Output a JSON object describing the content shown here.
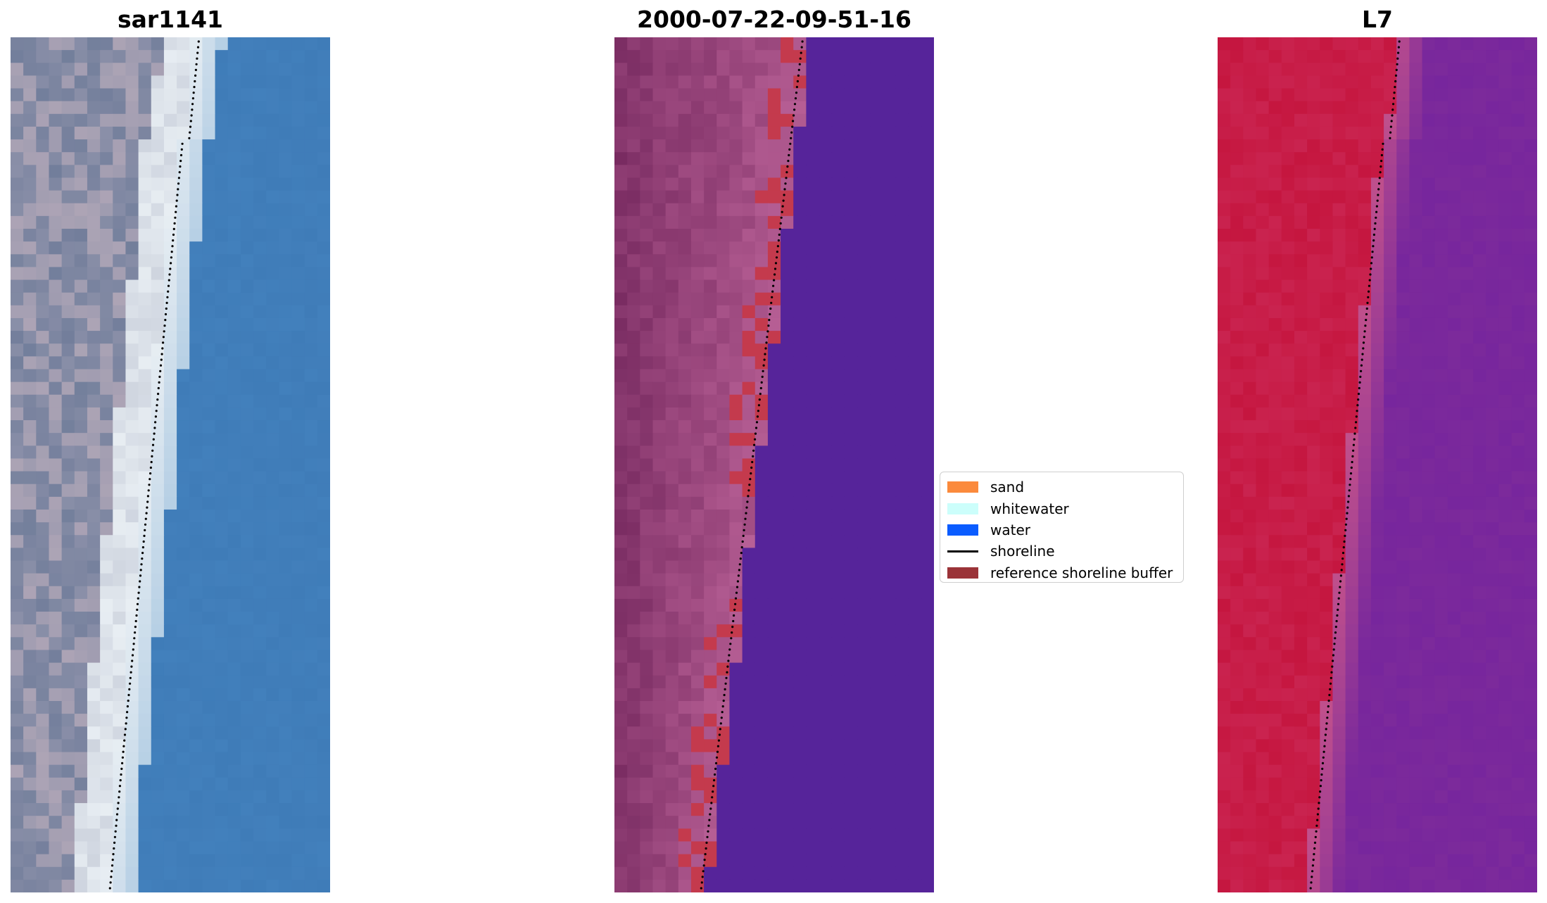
{
  "panels": [
    {
      "title": "sar1141",
      "kind": "rgb"
    },
    {
      "title": "2000-07-22-09-51-16",
      "kind": "classified"
    },
    {
      "title": "L7",
      "kind": "index"
    }
  ],
  "legend": {
    "items": [
      {
        "label": "sand",
        "color": "#fb8a3c",
        "type": "patch"
      },
      {
        "label": "whitewater",
        "color": "#ccfefb",
        "type": "patch"
      },
      {
        "label": "water",
        "color": "#0a5cff",
        "type": "patch"
      },
      {
        "label": "shoreline",
        "color": "#000000",
        "type": "line"
      },
      {
        "label": "reference shoreline buffer",
        "color": "#9b3338",
        "type": "patch"
      }
    ]
  },
  "colors": {
    "water_rgb": "#3f7cb8",
    "whitewater_rgb": "#e8eef3",
    "urban_rgb": "#8a8fa8",
    "classified_water": "#56249a",
    "classified_land": "#8e3a72",
    "buffer": "#c43a4d",
    "index_land": "#c5163f",
    "index_water": "#7c2a9b",
    "shoreline": "#000000"
  }
}
